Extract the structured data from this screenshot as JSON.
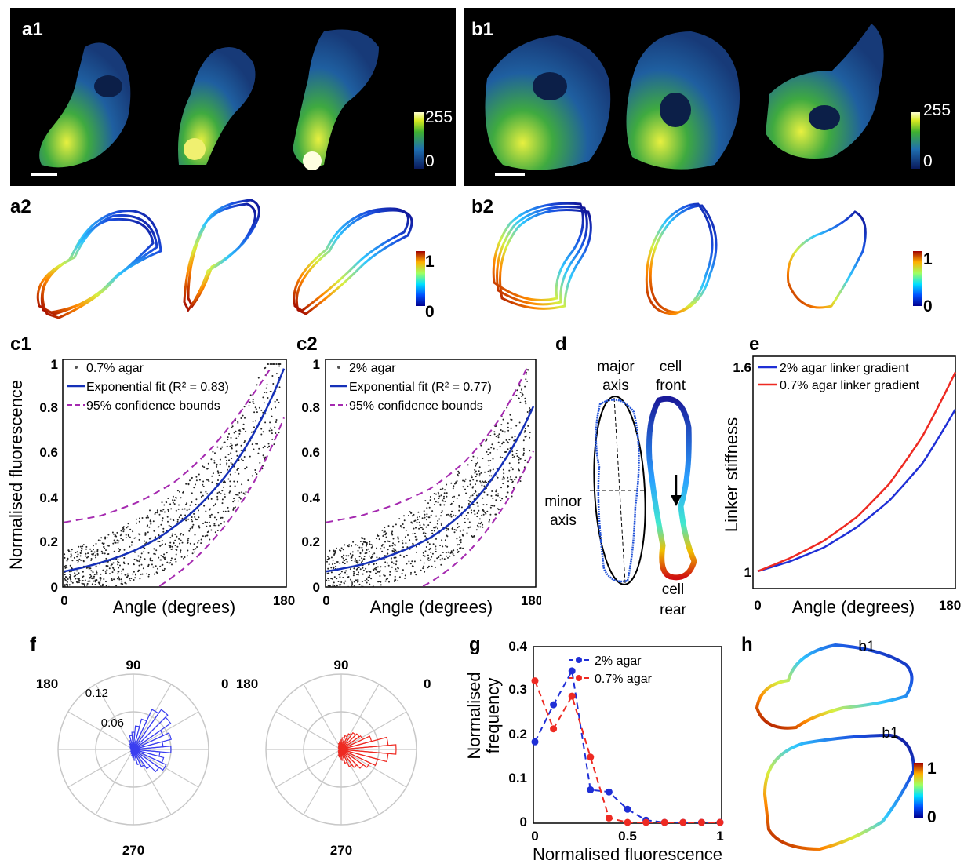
{
  "panels": {
    "a1": "a1",
    "b1": "b1",
    "a2": "a2",
    "b2": "b2",
    "c1": "c1",
    "c2": "c2",
    "d": "d",
    "e": "e",
    "f": "f",
    "g": "g",
    "h": "h"
  },
  "colorbars": {
    "a1": {
      "max": "255",
      "min": "0"
    },
    "b1": {
      "max": "255",
      "min": "0"
    },
    "a2": {
      "max": "1",
      "min": "0"
    },
    "b2": {
      "max": "1",
      "min": "0"
    },
    "h": {
      "max": "1",
      "min": "0"
    }
  },
  "c1": {
    "ylabel": "Normalised fluorescence",
    "xlabel": "Angle (degrees)",
    "xticks": [
      "0",
      "180"
    ],
    "yticks": [
      "0",
      "0.2",
      "0.4",
      "0.6",
      "0.8",
      "1"
    ],
    "legend": [
      "0.7% agar",
      "Exponential fit (R² = 0.83)",
      "95% confidence bounds"
    ]
  },
  "c2": {
    "xlabel": "Angle (degrees)",
    "xticks": [
      "0",
      "180"
    ],
    "yticks": [
      "0",
      "0.2",
      "0.4",
      "0.6",
      "0.8",
      "1"
    ],
    "legend": [
      "2% agar",
      "Exponential fit (R² = 0.77)",
      "95% confidence bounds"
    ]
  },
  "d": {
    "major_axis": [
      "major",
      "axis"
    ],
    "minor_axis": [
      "minor",
      "axis"
    ],
    "cell_front": [
      "cell",
      "front"
    ],
    "cell_rear": [
      "cell",
      "rear"
    ]
  },
  "e": {
    "ylabel": "Linker stiffness",
    "xlabel": "Angle (degrees)",
    "xticks": [
      "0",
      "180"
    ],
    "yticks": [
      "1",
      "1.6"
    ],
    "legend": [
      "2% agar linker gradient",
      "0.7% agar linker gradient"
    ]
  },
  "f": {
    "angles": [
      "90",
      "0",
      "180",
      "270"
    ],
    "radial_ticks": [
      "0.12",
      "0.06"
    ]
  },
  "g": {
    "ylabel": [
      "Normalised",
      "frequency"
    ],
    "xlabel": "Normalised fluorescence",
    "xticks": [
      "0",
      "0.5",
      "1"
    ],
    "yticks": [
      "0",
      "0.1",
      "0.2",
      "0.3",
      "0.4"
    ],
    "legend": [
      "2% agar",
      "0.7% agar"
    ]
  },
  "h": {
    "labels": [
      "b1",
      "b1"
    ]
  },
  "colors": {
    "blue": "#1f2fd6",
    "red": "#ee2a22",
    "purple": "#a52ab0",
    "fit_blue": "#1530b8"
  },
  "chart_data": [
    {
      "type": "scatter",
      "ylabel": "Normalised fluorescence",
      "xlabel": "Angle (degrees)",
      "xlim": [
        0,
        180
      ],
      "ylim": [
        0,
        1
      ],
      "series": [
        {
          "name": "0.7% agar",
          "points": "scatter"
        },
        {
          "name": "Exponential fit (R² = 0.83)",
          "x": [
            0,
            30,
            60,
            90,
            120,
            150,
            180
          ],
          "y": [
            0.07,
            0.11,
            0.17,
            0.27,
            0.42,
            0.64,
            0.98
          ]
        },
        {
          "name": "95% confidence bounds",
          "x": [
            0,
            30,
            60,
            90,
            120,
            150,
            170
          ],
          "y": [
            0.29,
            0.32,
            0.38,
            0.47,
            0.62,
            0.83,
            0.99
          ]
        }
      ]
    },
    {
      "type": "scatter",
      "xlabel": "Angle (degrees)",
      "xlim": [
        0,
        180
      ],
      "ylim": [
        0,
        1
      ],
      "series": [
        {
          "name": "2% agar",
          "points": "scatter"
        },
        {
          "name": "Exponential fit (R² = 0.77)",
          "x": [
            0,
            30,
            60,
            90,
            120,
            150,
            180
          ],
          "y": [
            0.07,
            0.1,
            0.15,
            0.22,
            0.34,
            0.53,
            0.81
          ]
        },
        {
          "name": "95% confidence bounds",
          "x": [
            0,
            30,
            60,
            90,
            120,
            150,
            175
          ],
          "y": [
            0.29,
            0.32,
            0.37,
            0.44,
            0.56,
            0.75,
            0.99
          ]
        }
      ]
    },
    {
      "type": "line",
      "ylabel": "Linker stiffness",
      "xlabel": "Angle (degrees)",
      "xlim": [
        0,
        180
      ],
      "ylim": [
        1,
        1.6
      ],
      "series": [
        {
          "name": "2% agar linker gradient",
          "x": [
            0,
            30,
            60,
            90,
            120,
            150,
            180
          ],
          "y": [
            1.0,
            1.03,
            1.07,
            1.13,
            1.21,
            1.32,
            1.48
          ]
        },
        {
          "name": "0.7% agar linker gradient",
          "x": [
            0,
            30,
            60,
            90,
            120,
            150,
            180
          ],
          "y": [
            1.0,
            1.04,
            1.09,
            1.16,
            1.26,
            1.4,
            1.59
          ]
        }
      ]
    },
    {
      "type": "line",
      "ylabel": "Normalised frequency",
      "xlabel": "Normalised fluorescence",
      "xlim": [
        0,
        1
      ],
      "ylim": [
        0,
        0.4
      ],
      "series": [
        {
          "name": "2% agar",
          "x": [
            0,
            0.1,
            0.2,
            0.3,
            0.4,
            0.5,
            0.6,
            0.7,
            0.8,
            0.9,
            1.0
          ],
          "y": [
            0.185,
            0.27,
            0.348,
            0.075,
            0.07,
            0.03,
            0.005,
            0,
            0,
            0,
            0
          ]
        },
        {
          "name": "0.7% agar",
          "x": [
            0,
            0.1,
            0.2,
            0.3,
            0.4,
            0.5,
            0.6,
            0.7,
            0.8,
            0.9,
            1.0
          ],
          "y": [
            0.325,
            0.215,
            0.29,
            0.15,
            0.01,
            0,
            0,
            0,
            0,
            0,
            0
          ]
        }
      ]
    }
  ]
}
